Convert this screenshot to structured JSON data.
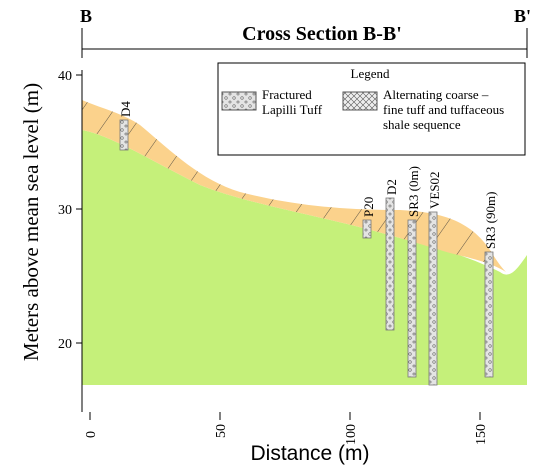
{
  "header": {
    "left_label": "B",
    "right_label": "B'",
    "title": "Cross Section B-B'"
  },
  "axes": {
    "y_label": "Meters above mean sea level (m)",
    "x_label": "Distance (m)",
    "y_ticks": [
      40,
      30,
      20
    ],
    "x_ticks": [
      0,
      50,
      100,
      150
    ]
  },
  "legend": {
    "title": "Legend",
    "items": [
      {
        "lines": [
          "Fractured",
          "Lapilli Tuff"
        ]
      },
      {
        "lines": [
          "Alternating coarse –",
          "fine tuff and tuffaceous",
          "shale sequence"
        ]
      }
    ]
  },
  "boreholes": [
    {
      "label": "D4"
    },
    {
      "label": "P20"
    },
    {
      "label": "D2"
    },
    {
      "label": "SR3 (0m)"
    },
    {
      "label": "VES02"
    },
    {
      "label": "SR3 (90m)"
    }
  ]
}
